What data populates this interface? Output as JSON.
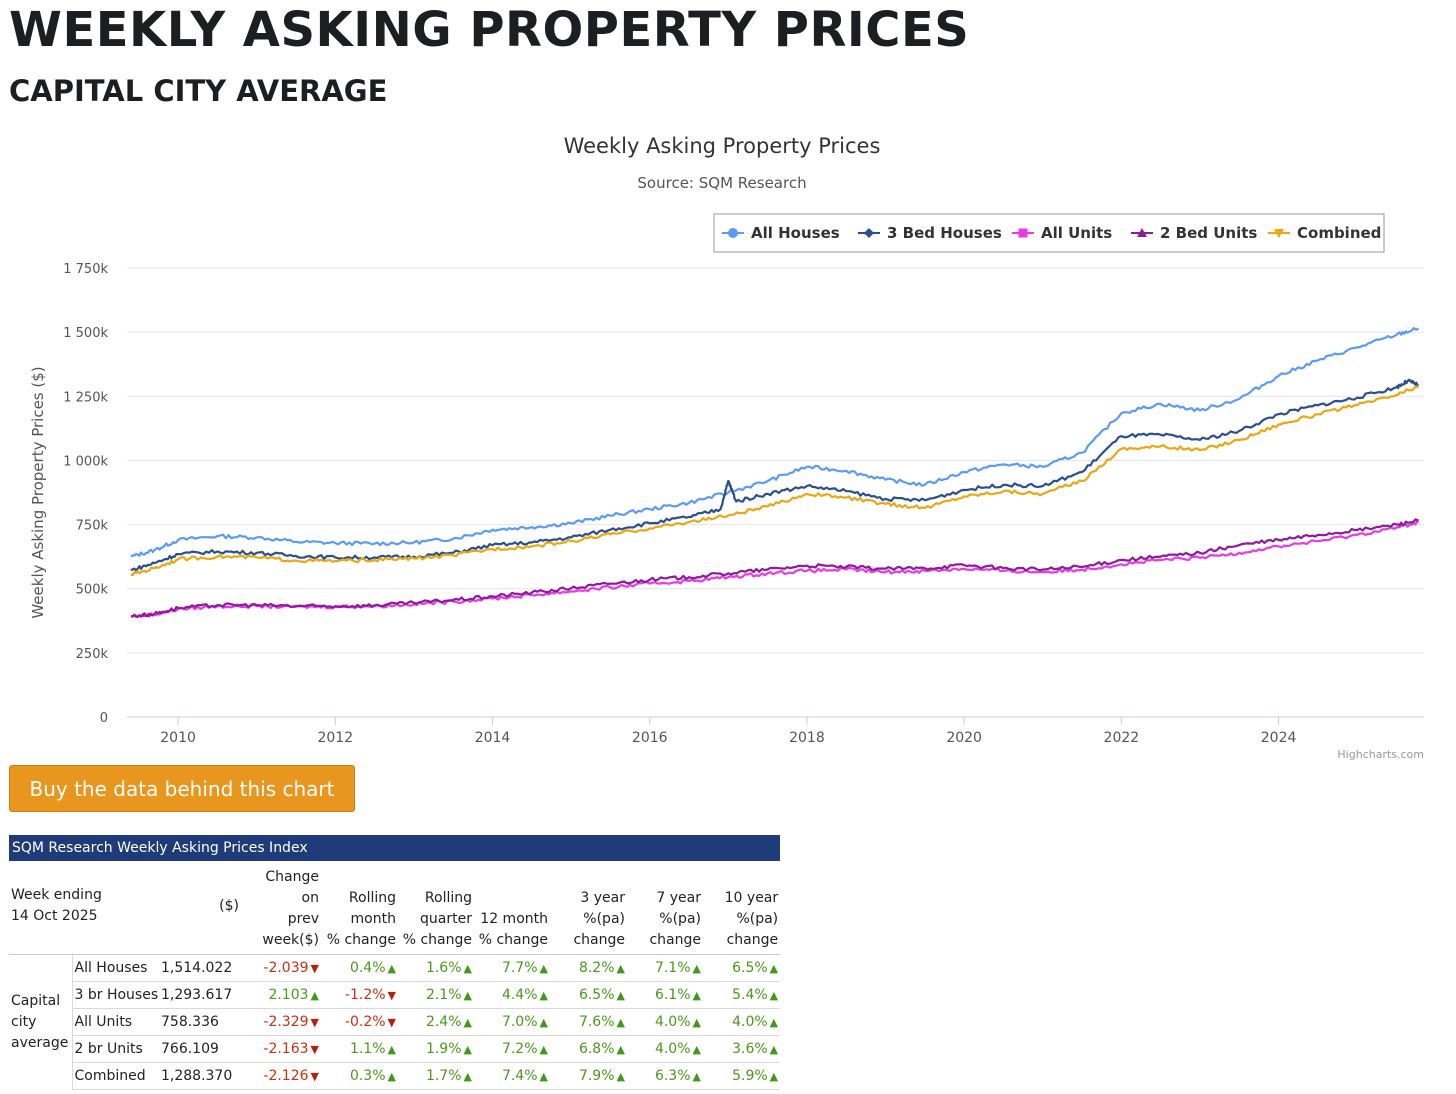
{
  "page": {
    "title": "WEEKLY ASKING PROPERTY PRICES",
    "subtitle": "CAPITAL CITY AVERAGE"
  },
  "button": {
    "label": "Buy the data behind this chart"
  },
  "chart_data": {
    "type": "line",
    "title": "Weekly Asking Property Prices",
    "subtitle": "Source: SQM Research",
    "ylabel": "Weekly Asking Property Prices ($)",
    "xlabel": "",
    "credit": "Highcharts.com",
    "legend_position": "top-right",
    "grid": true,
    "xlim": [
      2009.35,
      2025.85
    ],
    "ylim": [
      0,
      1750000
    ],
    "y_ticks": [
      0,
      250000,
      500000,
      750000,
      1000000,
      1250000,
      1500000,
      1750000
    ],
    "y_tick_labels": [
      "0",
      "250k",
      "500k",
      "750k",
      "1 000k",
      "1 250k",
      "1 500k",
      "1 750k"
    ],
    "x_ticks": [
      2010,
      2012,
      2014,
      2016,
      2018,
      2020,
      2022,
      2024
    ],
    "x_tick_labels": [
      "2010",
      "2012",
      "2014",
      "2016",
      "2018",
      "2020",
      "2022",
      "2024"
    ],
    "series": [
      {
        "name": "All Houses",
        "color": "#5b9bf0",
        "marker": "circle",
        "points": [
          [
            2009.4,
            625000
          ],
          [
            2009.7,
            650000
          ],
          [
            2010.0,
            690000
          ],
          [
            2010.5,
            705000
          ],
          [
            2011.0,
            700000
          ],
          [
            2011.5,
            683000
          ],
          [
            2012.0,
            678000
          ],
          [
            2012.5,
            676000
          ],
          [
            2013.0,
            680000
          ],
          [
            2013.5,
            695000
          ],
          [
            2014.0,
            730000
          ],
          [
            2014.5,
            740000
          ],
          [
            2015.0,
            755000
          ],
          [
            2015.5,
            785000
          ],
          [
            2016.0,
            810000
          ],
          [
            2016.5,
            835000
          ],
          [
            2017.0,
            875000
          ],
          [
            2017.5,
            920000
          ],
          [
            2018.0,
            975000
          ],
          [
            2018.5,
            960000
          ],
          [
            2019.0,
            925000
          ],
          [
            2019.5,
            905000
          ],
          [
            2020.0,
            955000
          ],
          [
            2020.5,
            985000
          ],
          [
            2021.0,
            975000
          ],
          [
            2021.5,
            1030000
          ],
          [
            2022.0,
            1185000
          ],
          [
            2022.5,
            1220000
          ],
          [
            2023.0,
            1195000
          ],
          [
            2023.5,
            1240000
          ],
          [
            2024.0,
            1330000
          ],
          [
            2024.5,
            1390000
          ],
          [
            2025.0,
            1440000
          ],
          [
            2025.5,
            1490000
          ],
          [
            2025.78,
            1514022
          ]
        ]
      },
      {
        "name": "3 Bed Houses",
        "color": "#2b4f8e",
        "marker": "diamond",
        "points": [
          [
            2009.4,
            572000
          ],
          [
            2009.7,
            600000
          ],
          [
            2010.0,
            635000
          ],
          [
            2010.5,
            645000
          ],
          [
            2011.0,
            640000
          ],
          [
            2011.5,
            628000
          ],
          [
            2012.0,
            622000
          ],
          [
            2012.5,
            622000
          ],
          [
            2013.0,
            625000
          ],
          [
            2013.5,
            640000
          ],
          [
            2014.0,
            670000
          ],
          [
            2014.5,
            680000
          ],
          [
            2015.0,
            700000
          ],
          [
            2015.5,
            730000
          ],
          [
            2016.0,
            755000
          ],
          [
            2016.5,
            780000
          ],
          [
            2016.9,
            810000
          ],
          [
            2017.0,
            920000
          ],
          [
            2017.1,
            840000
          ],
          [
            2017.5,
            870000
          ],
          [
            2018.0,
            900000
          ],
          [
            2018.5,
            880000
          ],
          [
            2019.0,
            850000
          ],
          [
            2019.5,
            845000
          ],
          [
            2020.0,
            885000
          ],
          [
            2020.5,
            905000
          ],
          [
            2021.0,
            900000
          ],
          [
            2021.5,
            955000
          ],
          [
            2022.0,
            1095000
          ],
          [
            2022.5,
            1100000
          ],
          [
            2023.0,
            1080000
          ],
          [
            2023.5,
            1115000
          ],
          [
            2024.0,
            1180000
          ],
          [
            2024.5,
            1215000
          ],
          [
            2025.0,
            1245000
          ],
          [
            2025.5,
            1285000
          ],
          [
            2025.65,
            1310000
          ],
          [
            2025.78,
            1293617
          ]
        ]
      },
      {
        "name": "All Units",
        "color": "#e63be6",
        "marker": "square",
        "points": [
          [
            2009.4,
            392000
          ],
          [
            2009.7,
            400000
          ],
          [
            2010.0,
            420000
          ],
          [
            2010.5,
            432000
          ],
          [
            2011.0,
            432000
          ],
          [
            2011.5,
            430000
          ],
          [
            2012.0,
            430000
          ],
          [
            2012.5,
            432000
          ],
          [
            2013.0,
            440000
          ],
          [
            2013.5,
            450000
          ],
          [
            2014.0,
            462000
          ],
          [
            2014.5,
            475000
          ],
          [
            2015.0,
            490000
          ],
          [
            2015.5,
            505000
          ],
          [
            2016.0,
            520000
          ],
          [
            2016.5,
            530000
          ],
          [
            2017.0,
            545000
          ],
          [
            2017.5,
            560000
          ],
          [
            2018.0,
            570000
          ],
          [
            2018.5,
            575000
          ],
          [
            2019.0,
            565000
          ],
          [
            2019.5,
            570000
          ],
          [
            2020.0,
            578000
          ],
          [
            2020.5,
            570000
          ],
          [
            2021.0,
            565000
          ],
          [
            2021.5,
            575000
          ],
          [
            2022.0,
            595000
          ],
          [
            2022.5,
            612000
          ],
          [
            2023.0,
            620000
          ],
          [
            2023.5,
            640000
          ],
          [
            2024.0,
            665000
          ],
          [
            2024.5,
            685000
          ],
          [
            2025.0,
            710000
          ],
          [
            2025.5,
            738000
          ],
          [
            2025.78,
            758336
          ]
        ]
      },
      {
        "name": "2 Bed Units",
        "color": "#8e1a9e",
        "marker": "triangle",
        "points": [
          [
            2009.4,
            393000
          ],
          [
            2009.7,
            402000
          ],
          [
            2010.0,
            425000
          ],
          [
            2010.5,
            436000
          ],
          [
            2011.0,
            436000
          ],
          [
            2011.5,
            432000
          ],
          [
            2012.0,
            432000
          ],
          [
            2012.5,
            435000
          ],
          [
            2013.0,
            445000
          ],
          [
            2013.5,
            456000
          ],
          [
            2014.0,
            470000
          ],
          [
            2014.5,
            485000
          ],
          [
            2015.0,
            502000
          ],
          [
            2015.5,
            520000
          ],
          [
            2016.0,
            535000
          ],
          [
            2016.5,
            545000
          ],
          [
            2017.0,
            560000
          ],
          [
            2017.5,
            575000
          ],
          [
            2018.0,
            590000
          ],
          [
            2018.5,
            585000
          ],
          [
            2019.0,
            578000
          ],
          [
            2019.5,
            580000
          ],
          [
            2020.0,
            592000
          ],
          [
            2020.5,
            580000
          ],
          [
            2021.0,
            575000
          ],
          [
            2021.5,
            585000
          ],
          [
            2022.0,
            612000
          ],
          [
            2022.5,
            625000
          ],
          [
            2023.0,
            640000
          ],
          [
            2023.5,
            670000
          ],
          [
            2024.0,
            690000
          ],
          [
            2024.5,
            710000
          ],
          [
            2025.0,
            728000
          ],
          [
            2025.5,
            750000
          ],
          [
            2025.78,
            766109
          ]
        ]
      },
      {
        "name": "Combined",
        "color": "#e8a812",
        "marker": "triangle-down",
        "points": [
          [
            2009.4,
            555000
          ],
          [
            2009.7,
            580000
          ],
          [
            2010.0,
            615000
          ],
          [
            2010.5,
            625000
          ],
          [
            2011.0,
            622000
          ],
          [
            2011.5,
            610000
          ],
          [
            2012.0,
            608000
          ],
          [
            2012.5,
            612000
          ],
          [
            2013.0,
            618000
          ],
          [
            2013.5,
            630000
          ],
          [
            2014.0,
            655000
          ],
          [
            2014.5,
            665000
          ],
          [
            2015.0,
            685000
          ],
          [
            2015.5,
            712000
          ],
          [
            2016.0,
            735000
          ],
          [
            2016.5,
            760000
          ],
          [
            2017.0,
            785000
          ],
          [
            2017.5,
            820000
          ],
          [
            2018.0,
            870000
          ],
          [
            2018.5,
            855000
          ],
          [
            2019.0,
            830000
          ],
          [
            2019.5,
            815000
          ],
          [
            2020.0,
            860000
          ],
          [
            2020.5,
            880000
          ],
          [
            2021.0,
            870000
          ],
          [
            2021.5,
            920000
          ],
          [
            2022.0,
            1045000
          ],
          [
            2022.5,
            1055000
          ],
          [
            2023.0,
            1040000
          ],
          [
            2023.5,
            1080000
          ],
          [
            2024.0,
            1140000
          ],
          [
            2024.5,
            1180000
          ],
          [
            2025.0,
            1215000
          ],
          [
            2025.5,
            1255000
          ],
          [
            2025.78,
            1288370
          ]
        ]
      }
    ]
  },
  "table": {
    "title": "SQM Research Weekly Asking Prices Index",
    "header": {
      "week": [
        "Week ending",
        "14 Oct 2025"
      ],
      "price": "($)",
      "change": [
        "Change",
        "on",
        "prev",
        "week($)"
      ],
      "rolling_month": [
        "Rolling",
        "month",
        "% change"
      ],
      "rolling_quarter": [
        "Rolling",
        "quarter",
        "% change"
      ],
      "month12": [
        "12 month",
        "% change"
      ],
      "year3": [
        "3 year",
        "%(pa)",
        "change"
      ],
      "year7": [
        "7 year",
        "%(pa)",
        "change"
      ],
      "year10": [
        "10 year",
        "%(pa)",
        "change"
      ]
    },
    "group_label": [
      "Capital",
      "city",
      "average"
    ],
    "rows": [
      {
        "name": "All Houses",
        "price": "1,514.022",
        "change": "-2.039",
        "change_dir": "down",
        "month": "0.4%",
        "month_dir": "up",
        "quarter": "1.6%",
        "quarter_dir": "up",
        "m12": "7.7%",
        "m12_dir": "up",
        "y3": "8.2%",
        "y3_dir": "up",
        "y7": "7.1%",
        "y7_dir": "up",
        "y10": "6.5%",
        "y10_dir": "up"
      },
      {
        "name": "3 br Houses",
        "price": "1,293.617",
        "change": "2.103",
        "change_dir": "up",
        "month": "-1.2%",
        "month_dir": "down",
        "quarter": "2.1%",
        "quarter_dir": "up",
        "m12": "4.4%",
        "m12_dir": "up",
        "y3": "6.5%",
        "y3_dir": "up",
        "y7": "6.1%",
        "y7_dir": "up",
        "y10": "5.4%",
        "y10_dir": "up"
      },
      {
        "name": "All Units",
        "price": "758.336",
        "change": "-2.329",
        "change_dir": "down",
        "month": "-0.2%",
        "month_dir": "down",
        "quarter": "2.4%",
        "quarter_dir": "up",
        "m12": "7.0%",
        "m12_dir": "up",
        "y3": "7.6%",
        "y3_dir": "up",
        "y7": "4.0%",
        "y7_dir": "up",
        "y10": "4.0%",
        "y10_dir": "up"
      },
      {
        "name": "2 br Units",
        "price": "766.109",
        "change": "-2.163",
        "change_dir": "down",
        "month": "1.1%",
        "month_dir": "up",
        "quarter": "1.9%",
        "quarter_dir": "up",
        "m12": "7.2%",
        "m12_dir": "up",
        "y3": "6.8%",
        "y3_dir": "up",
        "y7": "4.0%",
        "y7_dir": "up",
        "y10": "3.6%",
        "y10_dir": "up"
      },
      {
        "name": "Combined",
        "price": "1,288.370",
        "change": "-2.126",
        "change_dir": "down",
        "month": "0.3%",
        "month_dir": "up",
        "quarter": "1.7%",
        "quarter_dir": "up",
        "m12": "7.4%",
        "m12_dir": "up",
        "y3": "7.9%",
        "y3_dir": "up",
        "y7": "6.3%",
        "y7_dir": "up",
        "y10": "5.9%",
        "y10_dir": "up"
      }
    ]
  }
}
